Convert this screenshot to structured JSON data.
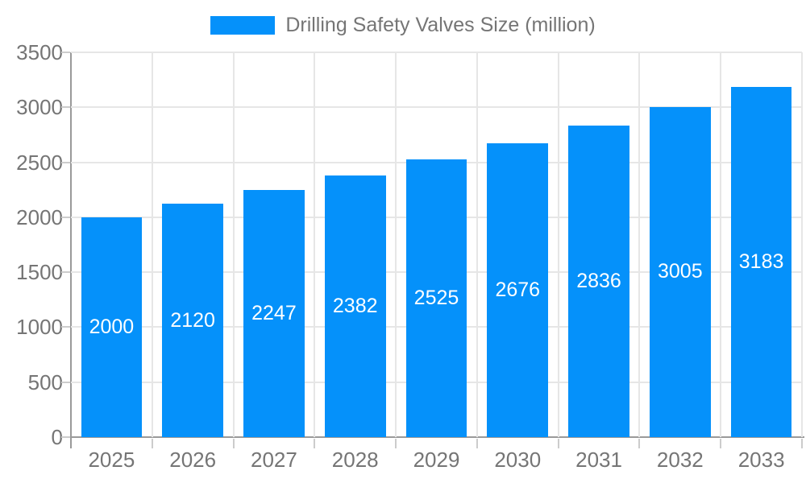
{
  "legend": {
    "label": "Drilling Safety Valves Size (million)"
  },
  "colors": {
    "bar": "#0591FA",
    "grid": "#e6e6e6",
    "axis": "#9a9a9a",
    "tick": "#cccccc",
    "text": "#757575",
    "value_label": "#ffffff",
    "background": "#ffffff"
  },
  "chart_data": {
    "type": "bar",
    "title": "Drilling Safety Valves Size (million)",
    "categories": [
      "2025",
      "2026",
      "2027",
      "2028",
      "2029",
      "2030",
      "2031",
      "2032",
      "2033"
    ],
    "series": [
      {
        "name": "Drilling Safety Valves Size (million)",
        "values": [
          2000,
          2120,
          2247,
          2382,
          2525,
          2676,
          2836,
          3005,
          3183
        ]
      }
    ],
    "values": [
      2000,
      2120,
      2247,
      2382,
      2525,
      2676,
      2836,
      3005,
      3183
    ],
    "value_labels": [
      "2000",
      "2120",
      "2247",
      "2382",
      "2525",
      "2676",
      "2836",
      "3005",
      "3183"
    ],
    "value_label_position": "inside-center",
    "xlabel": "",
    "ylabel": "",
    "ylim": [
      0,
      3500
    ],
    "yticks": [
      0,
      500,
      1000,
      1500,
      2000,
      2500,
      3000,
      3500
    ],
    "grid": true,
    "legend_position": "top",
    "bar_width_fraction": 0.75
  }
}
